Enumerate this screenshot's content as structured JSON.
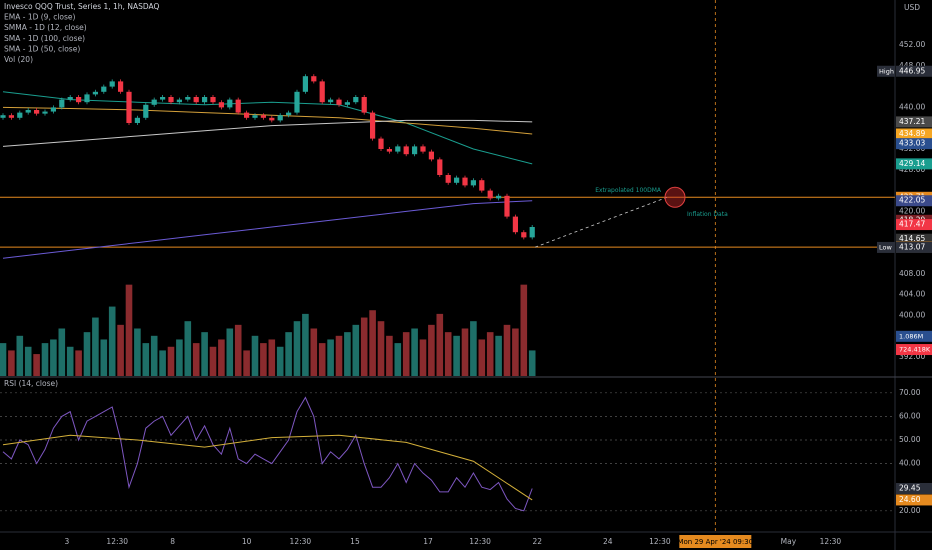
{
  "header": [
    "Invesco QQQ Trust, Series 1, 1h, NASDAQ",
    "EMA - 1D (9, close)",
    "SMMA - 1D (12, close)",
    "SMA - 1D (100, close)",
    "SMA - 1D (50, close)",
    "Vol (20)"
  ],
  "rsi_title": "RSI (14, close)",
  "currency": "USD",
  "price_ticks": [
    {
      "value": 452,
      "label": "452.00"
    },
    {
      "value": 448,
      "label": "448.00"
    },
    {
      "value": 440,
      "label": "440.00"
    },
    {
      "value": 432,
      "label": "432.00"
    },
    {
      "value": 428,
      "label": "428.00"
    },
    {
      "value": 420,
      "label": "420.00"
    },
    {
      "value": 408,
      "label": "408.00"
    },
    {
      "value": 404,
      "label": "404.00"
    },
    {
      "value": 400,
      "label": "400.00"
    },
    {
      "value": 392,
      "label": "392.00"
    }
  ],
  "price_badges": [
    {
      "value": 446.95,
      "label": "446.95",
      "color": "#2a2e39",
      "tag": "High"
    },
    {
      "value": 437.21,
      "label": "437.21",
      "color": "#4a4a4a"
    },
    {
      "value": 434.89,
      "label": "434.89",
      "color": "#f5a623"
    },
    {
      "value": 433.03,
      "label": "433.03",
      "color": "#2a4f8f"
    },
    {
      "value": 429.14,
      "label": "429.14",
      "color": "#1a9e8f"
    },
    {
      "value": 422.71,
      "label": "422.71",
      "color": "#e58a1f"
    },
    {
      "value": 422.05,
      "label": "422.05",
      "color": "#3b4a8a"
    },
    {
      "value": 418.29,
      "label": "418.29",
      "color": "#7a1f25"
    },
    {
      "value": 417.47,
      "label": "417.47",
      "color": "#f23645"
    },
    {
      "value": 414.65,
      "label": "414.65",
      "color": "#333333"
    },
    {
      "value": 413.13,
      "label": "413.13",
      "color": "#e58a1f"
    },
    {
      "value": 413.07,
      "label": "413.07",
      "color": "#2a2e39",
      "tag": "Low"
    }
  ],
  "levels": [
    {
      "value": 422.71,
      "color": "#e58a1f"
    },
    {
      "value": 413.13,
      "color": "#e58a1f"
    }
  ],
  "candles": {
    "first_open": 438,
    "up": "#26a69a",
    "down": "#f23645",
    "closes": [
      438.5,
      438,
      439,
      439.5,
      438.8,
      439.2,
      440,
      441.5,
      442,
      441,
      442.5,
      443,
      444,
      445,
      443,
      437,
      438,
      440.5,
      441.5,
      442,
      441,
      441.5,
      442,
      441,
      442,
      441,
      440,
      441.5,
      439,
      438,
      438.5,
      438,
      437.5,
      438.5,
      439,
      443,
      446,
      445,
      441,
      441.5,
      440.5,
      441,
      442,
      439,
      434,
      432,
      431.5,
      432.5,
      431,
      432.5,
      431.5,
      430,
      427,
      425.5,
      426.5,
      425,
      426,
      424,
      422.5,
      423,
      419,
      416,
      415,
      417
    ]
  },
  "ma_lines": [
    {
      "color": "#1a9e8f",
      "idx": [
        0,
        8,
        16,
        24,
        32,
        40,
        48,
        56,
        63
      ],
      "values": [
        443,
        441.5,
        441,
        440.5,
        441,
        440.5,
        437,
        432,
        429.14
      ]
    },
    {
      "color": "#d4a03a",
      "idx": [
        0,
        8,
        16,
        24,
        32,
        40,
        48,
        56,
        63
      ],
      "values": [
        440,
        439.8,
        439.5,
        439,
        438.5,
        438,
        437,
        436,
        434.89
      ]
    },
    {
      "color": "#c8c8c8",
      "idx": [
        0,
        8,
        16,
        24,
        32,
        40,
        48,
        56,
        63
      ],
      "values": [
        432.5,
        433.5,
        434.5,
        435.5,
        436.5,
        437,
        437.5,
        437.5,
        437.21
      ]
    },
    {
      "color": "#6b5bd6",
      "idx": [
        0,
        8,
        16,
        24,
        32,
        40,
        48,
        56,
        63
      ],
      "values": [
        411,
        412.5,
        414,
        415.5,
        417,
        418.5,
        420,
        421.5,
        422.05
      ]
    }
  ],
  "volume": {
    "values": [
      900,
      700,
      1100,
      800,
      600,
      900,
      1000,
      1300,
      800,
      700,
      1200,
      1600,
      1000,
      1900,
      1400,
      2500,
      1300,
      900,
      1100,
      700,
      800,
      1000,
      1500,
      900,
      1200,
      800,
      1000,
      1300,
      1400,
      700,
      1100,
      900,
      1000,
      800,
      1200,
      1500,
      1700,
      1300,
      900,
      1000,
      1100,
      1200,
      1400,
      1600,
      1800,
      1500,
      1100,
      900,
      1200,
      1300,
      1000,
      1400,
      1700,
      1200,
      1100,
      1300,
      1500,
      1000,
      1200,
      1100,
      1400,
      1300,
      2500,
      700
    ],
    "badges": [
      {
        "value": 1086,
        "label": "1.086M",
        "color": "#2a4f8f"
      },
      {
        "value": 724.418,
        "label": "724.418K",
        "color": "#f23645"
      }
    ]
  },
  "rsi": {
    "values": [
      45,
      42,
      50,
      48,
      40,
      46,
      55,
      60,
      62,
      50,
      58,
      60,
      62,
      64,
      50,
      30,
      40,
      55,
      58,
      60,
      52,
      56,
      60,
      50,
      56,
      48,
      44,
      55,
      42,
      40,
      44,
      42,
      40,
      45,
      50,
      62,
      68,
      60,
      40,
      45,
      42,
      46,
      52,
      40,
      30,
      30,
      34,
      40,
      32,
      40,
      36,
      33,
      28,
      28,
      34,
      30,
      36,
      30,
      29,
      32,
      25,
      21,
      20,
      29.45
    ],
    "ma": {
      "color": "#d4b03a",
      "idx": [
        0,
        8,
        16,
        24,
        32,
        40,
        48,
        56,
        63
      ],
      "values": [
        48,
        52,
        50,
        47,
        51,
        52,
        49,
        41,
        24.6
      ]
    },
    "ticks": [
      {
        "value": 70,
        "label": "70.00"
      },
      {
        "value": 60,
        "label": "60.00"
      },
      {
        "value": 50,
        "label": "50.00"
      },
      {
        "value": 40,
        "label": "40.00"
      },
      {
        "value": 20,
        "label": "20.00"
      }
    ],
    "badges": [
      {
        "value": 29.45,
        "label": "29.45",
        "color": "#2a2e39"
      },
      {
        "value": 24.6,
        "label": "24.60",
        "color": "#e58a1f"
      }
    ]
  },
  "time_labels": [
    {
      "label": "3",
      "index": 7.6
    },
    {
      "label": "12:30",
      "index": 13.6
    },
    {
      "label": "8",
      "index": 20.2
    },
    {
      "label": "10",
      "index": 29
    },
    {
      "label": "12:30",
      "index": 35.4
    },
    {
      "label": "15",
      "index": 41.9
    },
    {
      "label": "17",
      "index": 50.6
    },
    {
      "label": "12:30",
      "index": 56.8
    },
    {
      "label": "22",
      "index": 63.6
    },
    {
      "label": "24",
      "index": 72
    },
    {
      "label": "12:30",
      "index": 78.2
    },
    {
      "label": "May",
      "index": 93.5
    },
    {
      "label": "12:30",
      "index": 98.5
    }
  ],
  "cursor": {
    "label": "Mon 29 Apr '24  09:30",
    "index": 84.8
  },
  "annotations": {
    "target_index": 80,
    "extrapolated": "Extrapolated 100DMA",
    "inflation": "Inflation Data"
  }
}
